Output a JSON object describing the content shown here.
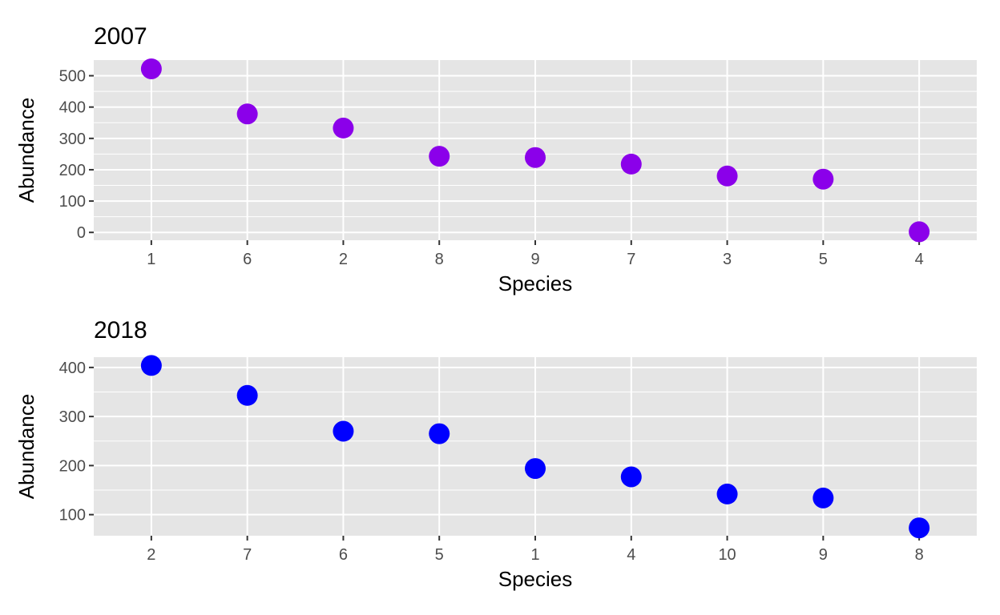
{
  "chart_data": [
    {
      "type": "scatter",
      "title": "2007",
      "xlabel": "Species",
      "ylabel": "Abundance",
      "categories": [
        "1",
        "6",
        "2",
        "8",
        "9",
        "7",
        "3",
        "5",
        "4"
      ],
      "values": [
        522,
        378,
        333,
        243,
        239,
        218,
        180,
        170,
        2
      ],
      "yticks": [
        "0",
        "100",
        "200",
        "300",
        "400",
        "500"
      ],
      "ylim": [
        -25,
        550
      ],
      "grid": true,
      "point_color": "#8b00ea"
    },
    {
      "type": "scatter",
      "title": "2018",
      "xlabel": "Species",
      "ylabel": "Abundance",
      "categories": [
        "2",
        "7",
        "6",
        "5",
        "1",
        "4",
        "10",
        "9",
        "8"
      ],
      "values": [
        404,
        343,
        270,
        265,
        194,
        177,
        142,
        134,
        73
      ],
      "yticks": [
        "100",
        "200",
        "300",
        "400"
      ],
      "ylim": [
        57,
        421
      ],
      "grid": true,
      "point_color": "#0000ff"
    }
  ],
  "colors": {
    "panel_background": "#e5e5e5",
    "grid_line": "#ffffff",
    "tick_text": "#4d4d4d",
    "tick_mark": "#333333"
  }
}
